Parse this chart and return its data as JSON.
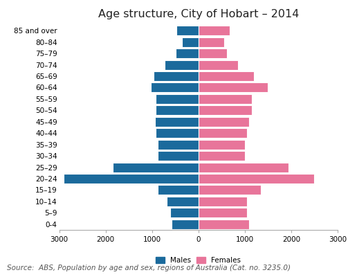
{
  "title": "Age structure, City of Hobart – 2014",
  "source": "Source:  ABS, Population by age and sex, regions of Australia (Cat. no. 3235.0)",
  "age_groups": [
    "0-4",
    "5–9",
    "10–14",
    "15–19",
    "20–24",
    "25–29",
    "30–34",
    "35–39",
    "40–44",
    "45–49",
    "50–54",
    "55–59",
    "60–64",
    "65–69",
    "70–74",
    "75–79",
    "80–84",
    "85 and over"
  ],
  "males": [
    580,
    600,
    680,
    870,
    2900,
    1850,
    870,
    870,
    920,
    940,
    920,
    920,
    1020,
    970,
    720,
    490,
    360,
    470
  ],
  "females": [
    1100,
    1050,
    1050,
    1350,
    2500,
    1950,
    1000,
    1000,
    1050,
    1100,
    1150,
    1150,
    1500,
    1200,
    850,
    620,
    550,
    680
  ],
  "male_color": "#1b6a9c",
  "female_color": "#e8759a",
  "xlim": 3000,
  "background_color": "#ffffff",
  "bar_edge_color": "#ffffff",
  "title_fontsize": 11.5,
  "label_fontsize": 7.5,
  "tick_fontsize": 7.5,
  "source_fontsize": 7.5
}
